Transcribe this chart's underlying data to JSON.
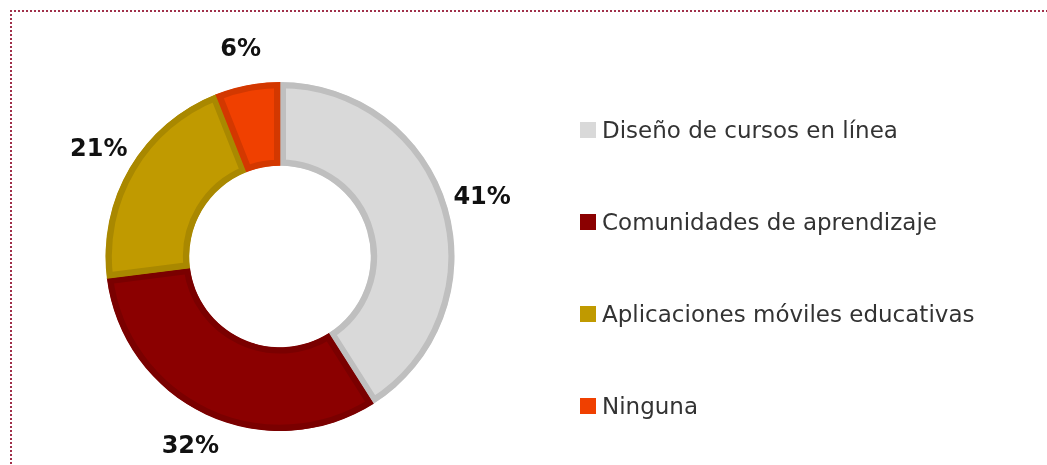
{
  "chart_data": {
    "type": "donut",
    "categories": [
      "Diseño de cursos en línea",
      "Comunidades de aprendizaje",
      "Aplicaciones móviles educativas",
      "Ninguna"
    ],
    "values": [
      41,
      32,
      21,
      6
    ],
    "colors": [
      "#d9d9d9",
      "#8b0000",
      "#c09a00",
      "#f04000"
    ],
    "value_labels": [
      "41%",
      "32%",
      "21%",
      "6%"
    ],
    "legend": "right"
  }
}
